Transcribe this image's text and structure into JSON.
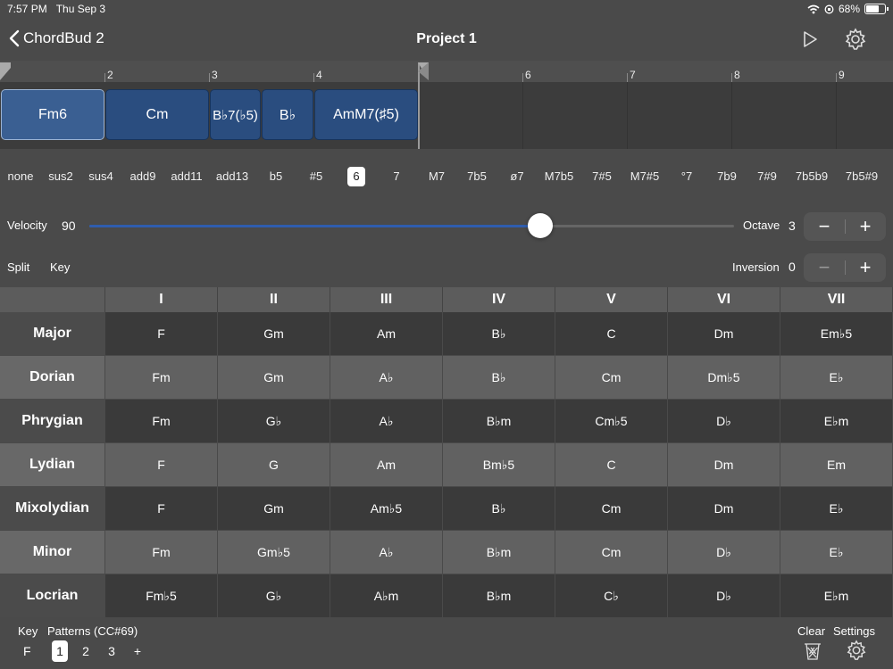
{
  "status": {
    "time": "7:57 PM",
    "date": "Thu Sep 3",
    "battery": "68%"
  },
  "nav": {
    "back_label": "ChordBud 2",
    "title": "Project 1",
    "play_icon": "play-icon",
    "settings_icon": "gear-icon"
  },
  "ruler": {
    "bars": [
      "2",
      "3",
      "4",
      "6",
      "7",
      "8",
      "9"
    ]
  },
  "chords": [
    {
      "label": "Fm6"
    },
    {
      "label": "Cm"
    },
    {
      "label": "B♭7(♭5)"
    },
    {
      "label": "B♭"
    },
    {
      "label": "AmM7(♯5)"
    }
  ],
  "extensions": {
    "items": [
      "none",
      "sus2",
      "sus4",
      "add9",
      "add11",
      "add13",
      "b5",
      "#5",
      "6",
      "7",
      "M7",
      "7b5",
      "ø7",
      "M7b5",
      "7#5",
      "M7#5",
      "°7",
      "7b9",
      "7#9",
      "7b5b9",
      "7b5#9"
    ],
    "selected": "6"
  },
  "velocity": {
    "label": "Velocity",
    "value": "90",
    "fraction": 0.7
  },
  "octave": {
    "label": "Octave",
    "value": "3",
    "minus": "−",
    "plus": "+"
  },
  "inversion": {
    "label": "Inversion",
    "value": "0",
    "minus": "−",
    "plus": "+"
  },
  "split_label": "Split",
  "key_label": "Key",
  "table": {
    "headers": [
      "I",
      "II",
      "III",
      "IV",
      "V",
      "VI",
      "VII"
    ],
    "rows": [
      {
        "mode": "Major",
        "chords": [
          "F",
          "Gm",
          "Am",
          "B♭",
          "C",
          "Dm",
          "Em♭5"
        ]
      },
      {
        "mode": "Dorian",
        "chords": [
          "Fm",
          "Gm",
          "A♭",
          "B♭",
          "Cm",
          "Dm♭5",
          "E♭"
        ]
      },
      {
        "mode": "Phrygian",
        "chords": [
          "Fm",
          "G♭",
          "A♭",
          "B♭m",
          "Cm♭5",
          "D♭",
          "E♭m"
        ]
      },
      {
        "mode": "Lydian",
        "chords": [
          "F",
          "G",
          "Am",
          "Bm♭5",
          "C",
          "Dm",
          "Em"
        ]
      },
      {
        "mode": "Mixolydian",
        "chords": [
          "F",
          "Gm",
          "Am♭5",
          "B♭",
          "Cm",
          "Dm",
          "E♭"
        ]
      },
      {
        "mode": "Minor",
        "chords": [
          "Fm",
          "Gm♭5",
          "A♭",
          "B♭m",
          "Cm",
          "D♭",
          "E♭"
        ]
      },
      {
        "mode": "Locrian",
        "chords": [
          "Fm♭5",
          "G♭",
          "A♭m",
          "B♭m",
          "C♭",
          "D♭",
          "E♭m"
        ]
      }
    ]
  },
  "bottom": {
    "key_label": "Key",
    "key_value": "F",
    "patterns_label": "Patterns (CC#69)",
    "patterns": [
      "1",
      "2",
      "3",
      "+"
    ],
    "selected_pattern": "1",
    "clear_label": "Clear",
    "settings_label": "Settings"
  }
}
